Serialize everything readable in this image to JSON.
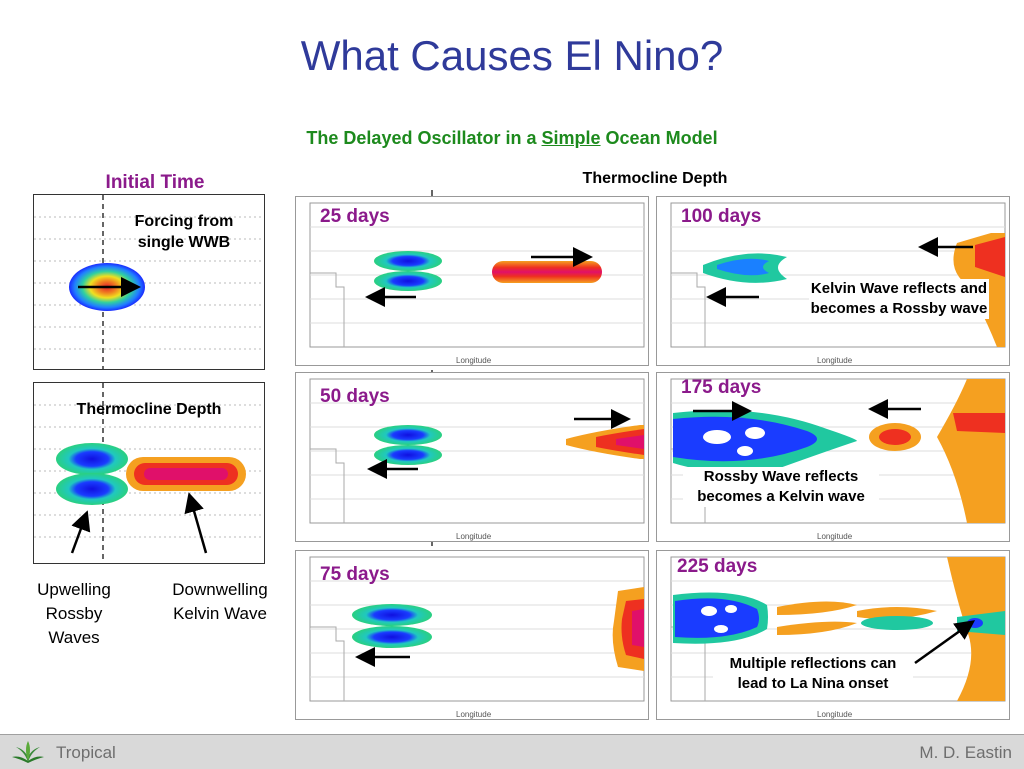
{
  "title": "What Causes El Nino?",
  "subtitle": {
    "prefix": "The Delayed Oscillator in a ",
    "underlined": "Simple",
    "suffix": " Ocean Model"
  },
  "initial_time_label": "Initial Time",
  "forcing_label": "Forcing from single WWB",
  "thermocline_depth_left": "Thermocline Depth",
  "thermocline_depth_header": "Thermocline Depth",
  "upwelling_label": "Upwelling Rossby Waves",
  "downwelling_label": "Downwelling Kelvin Wave",
  "panels": {
    "p25": {
      "label": "25 days"
    },
    "p50": {
      "label": "50 days"
    },
    "p75": {
      "label": "75 days"
    },
    "p100": {
      "label": "100 days",
      "note": "Kelvin Wave reflects and becomes a Rossby wave"
    },
    "p175": {
      "label": "175 days",
      "note": "Rossby Wave reflects becomes a Kelvin wave"
    },
    "p225": {
      "label": "225 days",
      "note": "Multiple reflections can lead to La Nina onset"
    }
  },
  "axis_label": "Longitude",
  "footer": {
    "left": "Tropical",
    "right": "M. D. Eastin"
  },
  "colors": {
    "title": "#2f3a9a",
    "subtitle": "#1d8a1d",
    "day_label": "#8b1a8b",
    "footer_text": "#6e6e6e"
  },
  "icons": [
    "leaf-logo-icon",
    "arrow-left-icon",
    "arrow-right-icon"
  ]
}
